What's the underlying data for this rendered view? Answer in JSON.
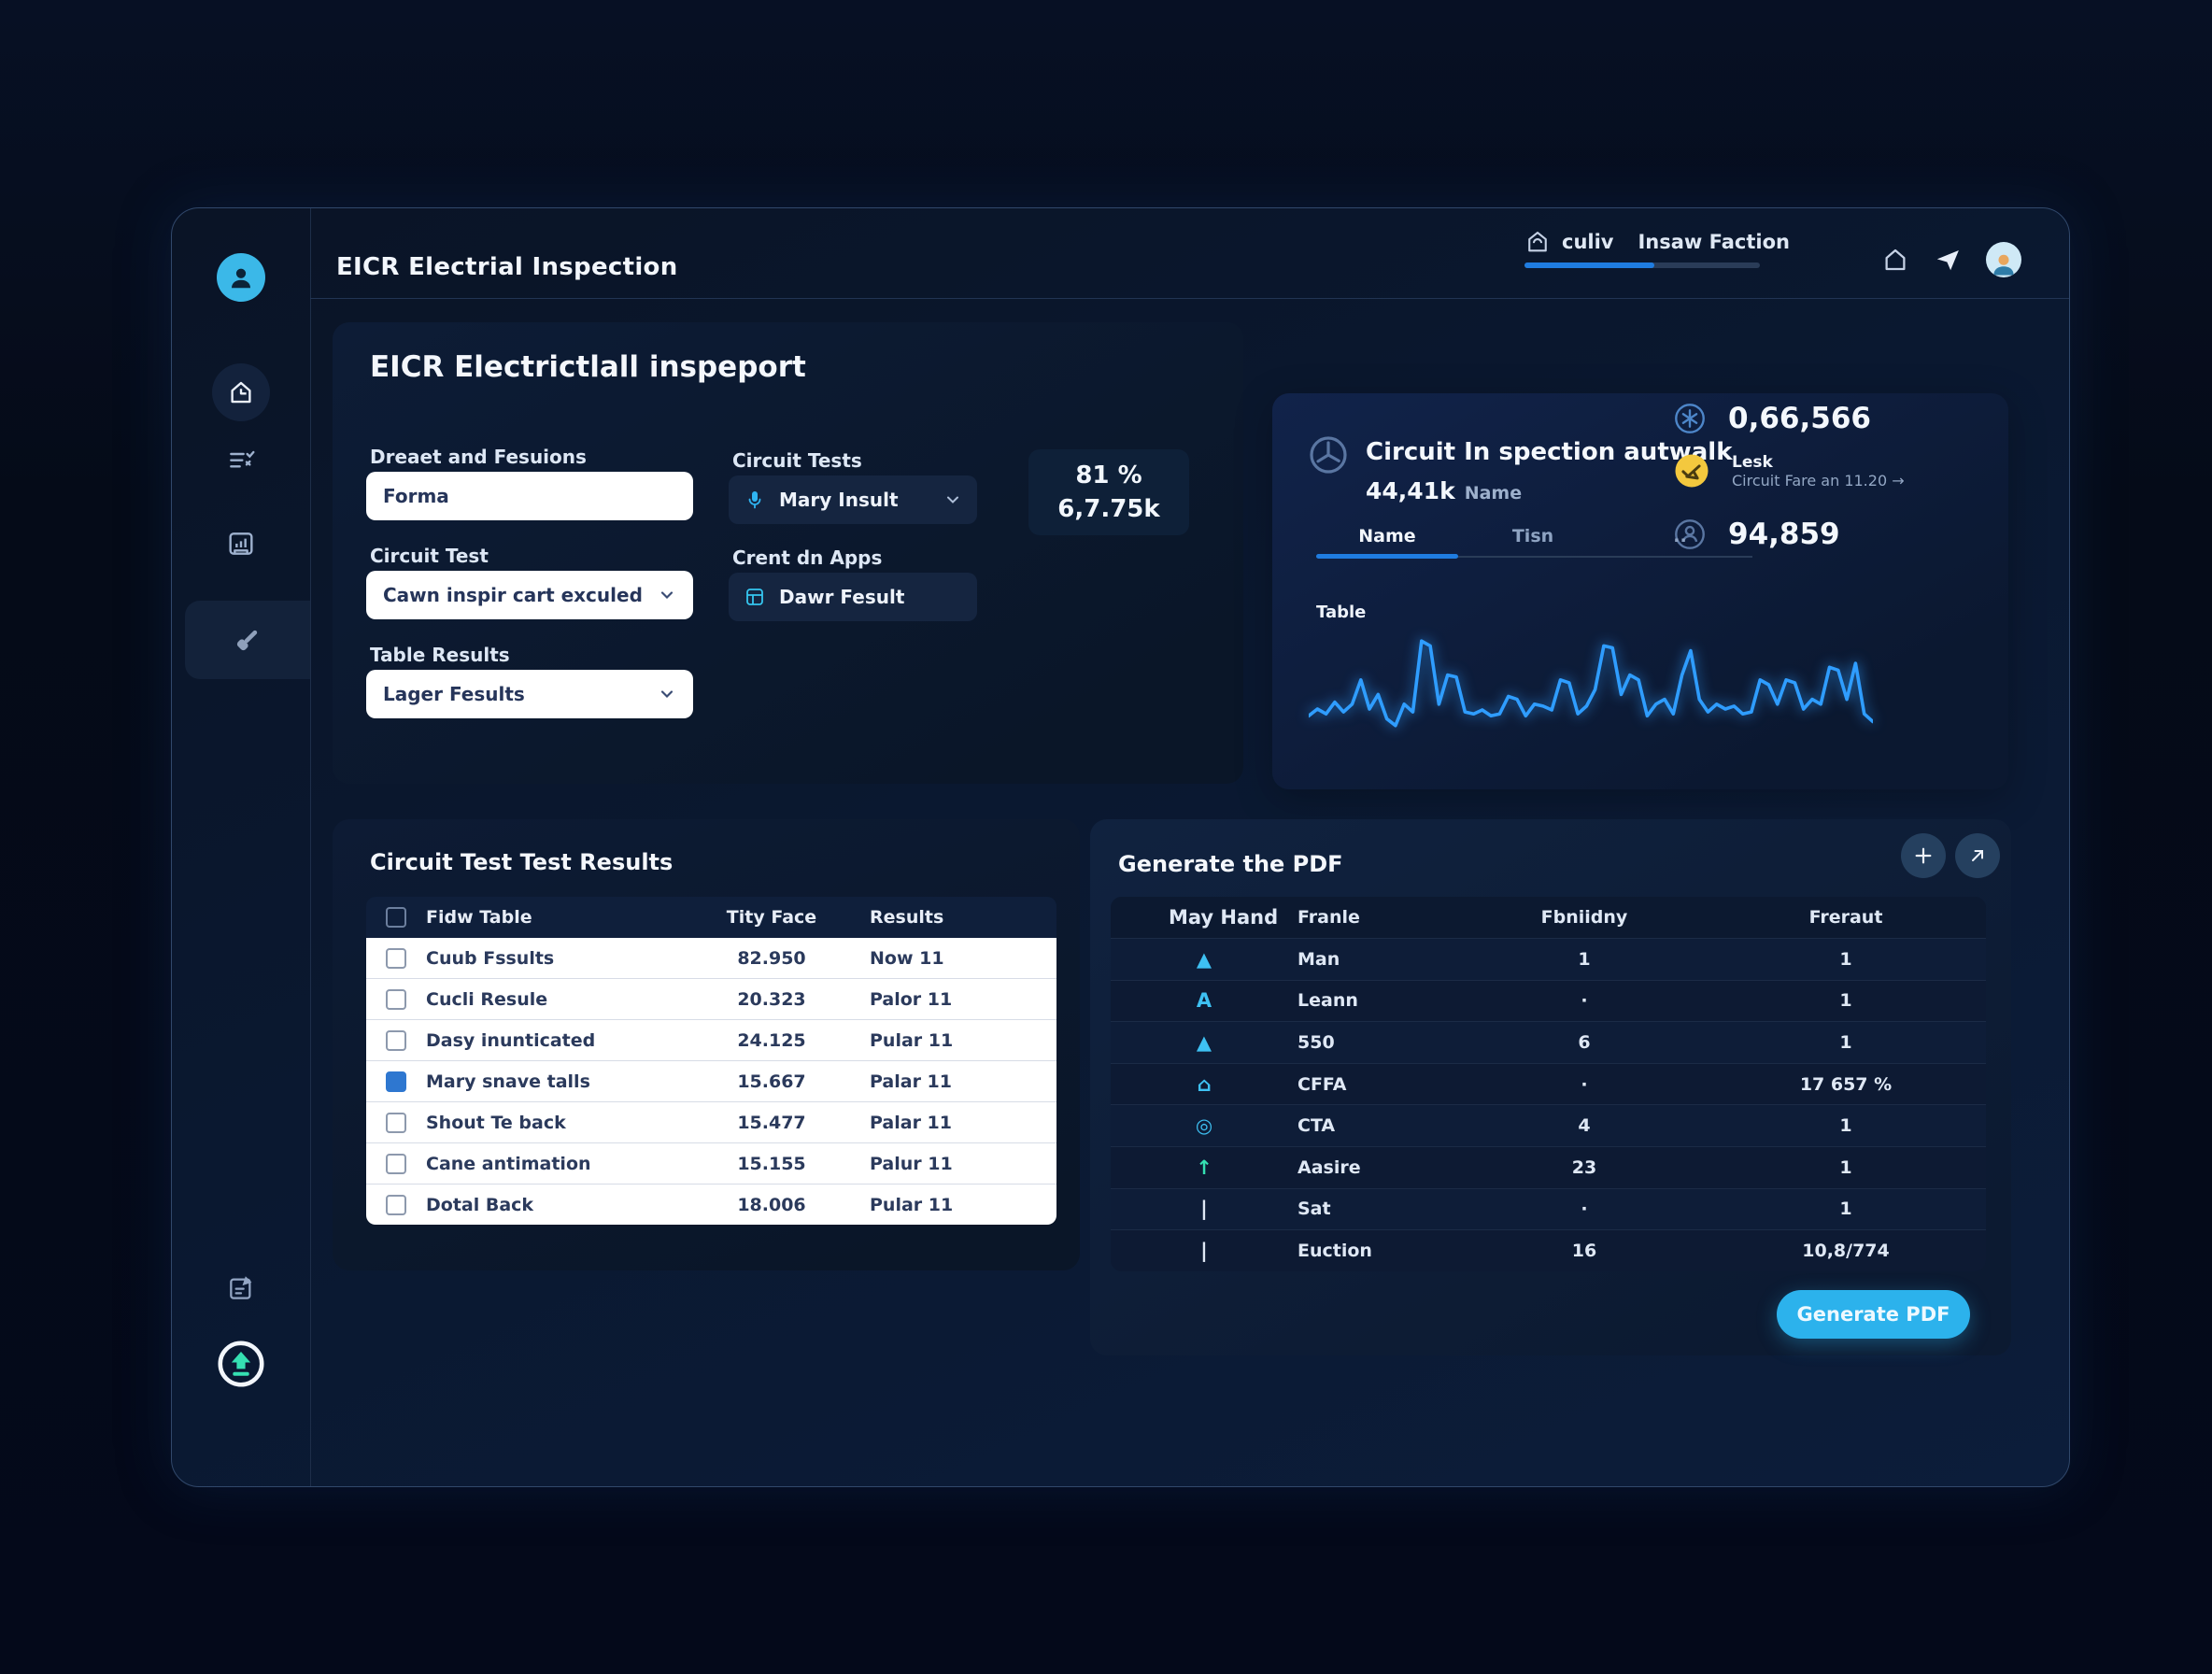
{
  "topbar": {
    "app_title": "EICR Electrial Inspection",
    "brand": "culiv",
    "brand_rest": "Insaw Faction",
    "progress_pct": 55
  },
  "panel_main": {
    "title": "EICR Electrictlall inspeport",
    "field1_label": "Dreaet and Fesuions",
    "field1_value": "Forma",
    "field2_label": "Circuit Test",
    "field2_value": "Cawn inspir cart exculed",
    "field3_label": "Table Results",
    "field3_value": "Lager Fesults",
    "field4_label": "Circuit Tests",
    "field4_value": "Mary Insult",
    "field5_label": "Crent dn Apps",
    "field5_value": "Dawr Fesult",
    "stat_pct": "81 %",
    "stat_value": "6,7.75k"
  },
  "panel_inspect": {
    "title": "Circuit In spection autwalk",
    "metric": "44,41k",
    "metric_label": "Name",
    "tabs": [
      "Name",
      "Tisn",
      ".."
    ],
    "active_tab": 0,
    "stat1_value": "0,66,566",
    "stat2_title": "Lesk",
    "stat2_subtitle": "Circuit Fare an 11.20 →",
    "stat3_value": "94,859",
    "chart_label": "Table"
  },
  "chart_data": {
    "type": "line",
    "title": "Table",
    "values": [
      18,
      25,
      20,
      32,
      22,
      30,
      55,
      25,
      40,
      15,
      8,
      30,
      22,
      95,
      90,
      30,
      60,
      58,
      22,
      20,
      24,
      18,
      20,
      38,
      35,
      18,
      30,
      28,
      24,
      55,
      52,
      20,
      28,
      45,
      90,
      88,
      40,
      60,
      55,
      18,
      30,
      35,
      20,
      60,
      85,
      35,
      22,
      30,
      25,
      28,
      20,
      22,
      55,
      50,
      30,
      55,
      52,
      25,
      35,
      30,
      68,
      65,
      35,
      72,
      20,
      12
    ],
    "x_range": [
      0,
      65
    ],
    "y_range": [
      0,
      100
    ],
    "grid": false,
    "legend": false,
    "color": "#2f9dff"
  },
  "results_panel": {
    "title": "Circuit Test Test Results",
    "columns": [
      "Fidw Table",
      "Tity Face",
      "Results"
    ],
    "rows": [
      {
        "checked": false,
        "name": "Cuub Fssults",
        "value": "82.950",
        "result": "Now 11"
      },
      {
        "checked": false,
        "name": "Cucli Resule",
        "value": "20.323",
        "result": "Palor 11"
      },
      {
        "checked": false,
        "name": "Dasy inunticated",
        "value": "24.125",
        "result": "Pular 11"
      },
      {
        "checked": true,
        "name": "Mary snave talls",
        "value": "15.667",
        "result": "Palar 11"
      },
      {
        "checked": false,
        "name": "Shout Te back",
        "value": "15.477",
        "result": "Palar 11"
      },
      {
        "checked": false,
        "name": "Cane antimation",
        "value": "15.155",
        "result": "Palur 11"
      },
      {
        "checked": false,
        "name": "Dotal Back",
        "value": "18.006",
        "result": "Pular 11"
      }
    ]
  },
  "pdf_panel": {
    "title": "Generate the PDF",
    "columns": [
      "May Hand",
      "Franle",
      "Fbniidny",
      "Freraut"
    ],
    "icon_glyphs": {
      "arrow-up": "▲",
      "letter-a": "A",
      "home": "⌂",
      "circle": "◎",
      "arrow-up-teal": "↑",
      "bar": "|"
    },
    "rows": [
      {
        "icon": "arrow-up",
        "tone": "cyan",
        "name": "Man",
        "v1": "1",
        "v2": "1"
      },
      {
        "icon": "letter-a",
        "tone": "cyan",
        "name": "Leann",
        "v1": "·",
        "v2": "1"
      },
      {
        "icon": "arrow-up",
        "tone": "cyan",
        "name": "550",
        "v1": "6",
        "v2": "1"
      },
      {
        "icon": "home",
        "tone": "cyan",
        "name": "CFFA",
        "v1": "·",
        "v2": "17 657 %"
      },
      {
        "icon": "circle",
        "tone": "cyan",
        "name": "CTA",
        "v1": "4",
        "v2": "1"
      },
      {
        "icon": "arrow-up-teal",
        "tone": "teal",
        "name": "Aasire",
        "v1": "23",
        "v2": "1"
      },
      {
        "icon": "bar",
        "tone": "white",
        "name": "Sat",
        "v1": "·",
        "v2": "1"
      },
      {
        "icon": "bar",
        "tone": "white",
        "name": "Euction",
        "v1": "16",
        "v2": "10,8/774"
      }
    ],
    "button_label": "Generate PDF"
  }
}
